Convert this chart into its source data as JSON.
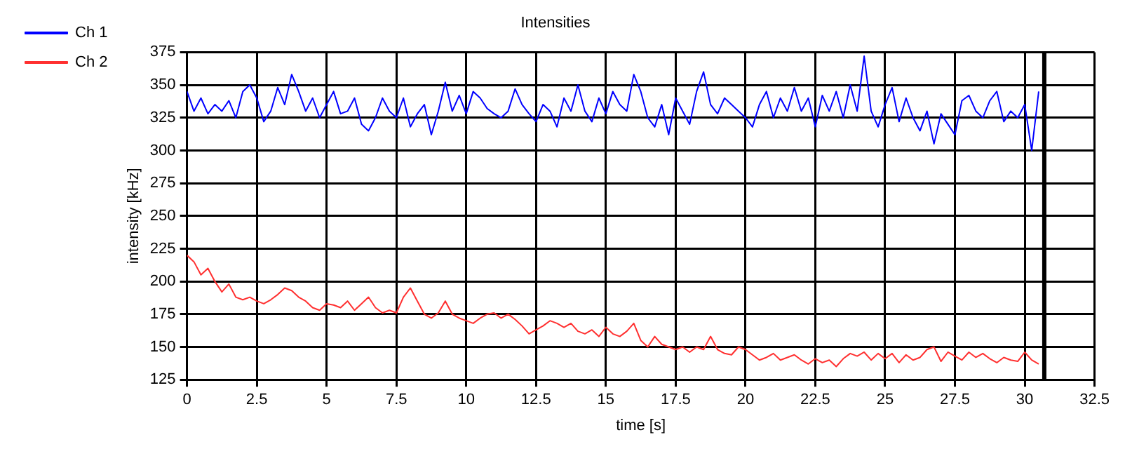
{
  "chart_data": {
    "type": "line",
    "title": "Intensities",
    "xlabel": "time [s]",
    "ylabel": "intensity [kHz]",
    "x": [
      0,
      0.25,
      0.5,
      0.75,
      1,
      1.25,
      1.5,
      1.75,
      2,
      2.25,
      2.5,
      2.75,
      3,
      3.25,
      3.5,
      3.75,
      4,
      4.25,
      4.5,
      4.75,
      5,
      5.25,
      5.5,
      5.75,
      6,
      6.25,
      6.5,
      6.75,
      7,
      7.25,
      7.5,
      7.75,
      8,
      8.25,
      8.5,
      8.75,
      9,
      9.25,
      9.5,
      9.75,
      10,
      10.25,
      10.5,
      10.75,
      11,
      11.25,
      11.5,
      11.75,
      12,
      12.25,
      12.5,
      12.75,
      13,
      13.25,
      13.5,
      13.75,
      14,
      14.25,
      14.5,
      14.75,
      15,
      15.25,
      15.5,
      15.75,
      16,
      16.25,
      16.5,
      16.75,
      17,
      17.25,
      17.5,
      17.75,
      18,
      18.25,
      18.5,
      18.75,
      19,
      19.25,
      19.5,
      19.75,
      20,
      20.25,
      20.5,
      20.75,
      21,
      21.25,
      21.5,
      21.75,
      22,
      22.25,
      22.5,
      22.75,
      23,
      23.25,
      23.5,
      23.75,
      24,
      24.25,
      24.5,
      24.75,
      25,
      25.25,
      25.5,
      25.75,
      26,
      26.25,
      26.5,
      26.75,
      27,
      27.25,
      27.5,
      27.75,
      28,
      28.25,
      28.5,
      28.75,
      29,
      29.25,
      29.5,
      29.75,
      30,
      30.25,
      30.5
    ],
    "series": [
      {
        "name": "Ch 1",
        "color": "#0000ff",
        "values": [
          345,
          330,
          340,
          328,
          335,
          330,
          338,
          325,
          345,
          350,
          340,
          322,
          330,
          348,
          335,
          358,
          345,
          330,
          340,
          325,
          335,
          345,
          328,
          330,
          340,
          320,
          315,
          325,
          340,
          330,
          325,
          340,
          318,
          328,
          335,
          312,
          330,
          352,
          330,
          342,
          328,
          345,
          340,
          332,
          328,
          325,
          330,
          347,
          335,
          328,
          322,
          335,
          330,
          318,
          340,
          330,
          350,
          330,
          322,
          340,
          328,
          345,
          335,
          330,
          358,
          345,
          325,
          318,
          335,
          312,
          340,
          330,
          320,
          345,
          360,
          335,
          328,
          340,
          335,
          330,
          325,
          318,
          335,
          345,
          325,
          340,
          330,
          348,
          330,
          340,
          318,
          342,
          330,
          345,
          325,
          350,
          330,
          372,
          330,
          318,
          335,
          348,
          322,
          340,
          325,
          315,
          330,
          305,
          328,
          320,
          312,
          338,
          342,
          330,
          325,
          338,
          345,
          322,
          330,
          325,
          335,
          300,
          345
        ]
      },
      {
        "name": "Ch 2",
        "color": "#ff3030",
        "values": [
          220,
          215,
          205,
          210,
          200,
          192,
          198,
          188,
          186,
          188,
          185,
          183,
          186,
          190,
          195,
          193,
          188,
          185,
          180,
          178,
          183,
          182,
          180,
          185,
          178,
          183,
          188,
          180,
          176,
          178,
          176,
          188,
          195,
          185,
          175,
          172,
          176,
          185,
          175,
          172,
          170,
          168,
          172,
          175,
          176,
          172,
          175,
          171,
          166,
          160,
          163,
          166,
          170,
          168,
          165,
          168,
          162,
          160,
          163,
          158,
          165,
          160,
          158,
          162,
          168,
          155,
          150,
          158,
          152,
          150,
          148,
          150,
          146,
          150,
          148,
          158,
          148,
          145,
          144,
          150,
          148,
          144,
          140,
          142,
          145,
          140,
          142,
          144,
          140,
          137,
          141,
          138,
          140,
          135,
          141,
          145,
          143,
          146,
          140,
          145,
          141,
          145,
          138,
          144,
          140,
          142,
          148,
          150,
          139,
          146,
          143,
          140,
          146,
          142,
          145,
          141,
          138,
          142,
          140,
          139,
          146,
          140,
          137
        ]
      }
    ],
    "xlim": [
      0,
      32.5
    ],
    "xticks": [
      0,
      2.5,
      5,
      7.5,
      10,
      12.5,
      15,
      17.5,
      20,
      22.5,
      25,
      27.5,
      30,
      32.5
    ],
    "ylim": [
      125,
      375
    ],
    "yticks": [
      125,
      150,
      175,
      200,
      225,
      250,
      275,
      300,
      325,
      350,
      375
    ],
    "grid": true,
    "legend": "top left",
    "ref_lines": [
      {
        "axis": "x",
        "value": 30.7,
        "color": "#000000"
      }
    ]
  }
}
